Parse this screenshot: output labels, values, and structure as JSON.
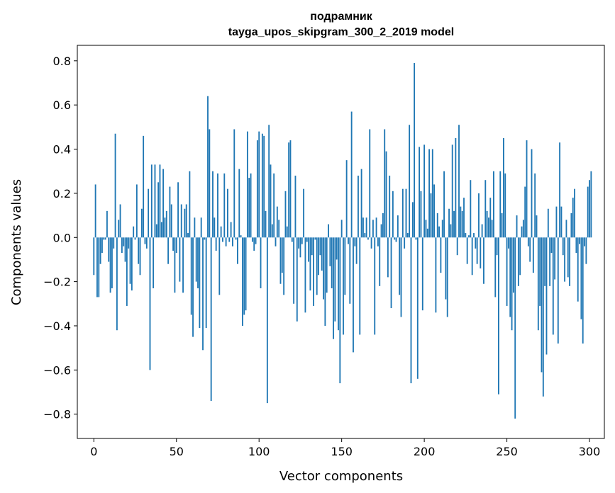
{
  "chart_data": {
    "type": "bar",
    "title": "подрамник",
    "subtitle": "tayga_upos_skipgram_300_2_2019 model",
    "xlabel": "Vector components",
    "ylabel": "Components values",
    "xlim": [
      -10,
      309
    ],
    "ylim": [
      -0.91,
      0.87
    ],
    "xticks": [
      0,
      50,
      100,
      150,
      200,
      250,
      300
    ],
    "yticks": [
      -0.8,
      -0.6,
      -0.4,
      -0.2,
      0.0,
      0.2,
      0.4,
      0.6,
      0.8
    ],
    "ytick_labels": [
      "−0.8",
      "−0.6",
      "−0.4",
      "−0.2",
      "0.0",
      "0.2",
      "0.4",
      "0.6",
      "0.8"
    ],
    "bar_color": "#1f77b4",
    "grid": false,
    "values": [
      -0.17,
      0.24,
      -0.27,
      -0.27,
      -0.12,
      -0.07,
      -0.01,
      -0.01,
      0.12,
      -0.11,
      -0.25,
      -0.23,
      -0.05,
      0.47,
      -0.42,
      0.08,
      0.15,
      -0.07,
      -0.04,
      -0.11,
      -0.31,
      -0.05,
      -0.21,
      -0.24,
      0.05,
      -0.01,
      0.24,
      -0.12,
      -0.17,
      0.13,
      0.46,
      -0.03,
      -0.05,
      0.22,
      -0.6,
      0.33,
      -0.23,
      0.33,
      0.06,
      0.25,
      0.33,
      0.07,
      0.31,
      0.09,
      0.12,
      -0.12,
      0.23,
      0.15,
      -0.06,
      -0.25,
      -0.07,
      0.25,
      -0.2,
      0.15,
      -0.25,
      0.13,
      0.15,
      0.02,
      0.3,
      -0.35,
      -0.45,
      0.09,
      -0.2,
      -0.23,
      -0.41,
      0.09,
      -0.51,
      -0.01,
      -0.41,
      0.64,
      0.49,
      -0.74,
      0.3,
      0.09,
      -0.06,
      0.29,
      -0.26,
      0.05,
      -0.02,
      0.29,
      -0.04,
      0.22,
      -0.02,
      0.07,
      -0.04,
      0.49,
      -0.01,
      -0.12,
      0.31,
      0.01,
      -0.4,
      -0.35,
      -0.33,
      0.48,
      0.27,
      0.29,
      -0.02,
      -0.06,
      -0.03,
      0.44,
      0.48,
      -0.23,
      0.47,
      0.46,
      0.12,
      -0.75,
      0.51,
      0.33,
      0.06,
      0.29,
      -0.04,
      0.14,
      0.08,
      -0.21,
      -0.16,
      -0.26,
      0.21,
      0.05,
      0.43,
      0.44,
      -0.02,
      -0.3,
      0.28,
      -0.38,
      -0.05,
      -0.09,
      -0.03,
      0.22,
      -0.34,
      -0.02,
      -0.11,
      -0.24,
      -0.08,
      -0.31,
      -0.01,
      -0.26,
      -0.17,
      -0.08,
      -0.15,
      -0.28,
      -0.4,
      -0.25,
      0.06,
      -0.13,
      -0.23,
      -0.46,
      -0.38,
      -0.1,
      -0.42,
      -0.66,
      0.08,
      -0.44,
      -0.26,
      0.35,
      -0.03,
      -0.3,
      0.57,
      -0.52,
      -0.04,
      -0.12,
      0.28,
      -0.44,
      0.31,
      0.09,
      0.02,
      0.09,
      -0.01,
      0.49,
      -0.05,
      0.08,
      -0.44,
      0.09,
      -0.04,
      -0.22,
      0.06,
      0.11,
      0.49,
      0.39,
      -0.18,
      0.28,
      -0.32,
      0.21,
      -0.01,
      -0.02,
      0.1,
      -0.26,
      -0.36,
      0.22,
      -0.05,
      0.22,
      0.02,
      0.51,
      -0.66,
      0.16,
      0.79,
      -0.01,
      -0.64,
      0.41,
      0.21,
      -0.33,
      0.42,
      0.08,
      0.04,
      0.4,
      0.2,
      0.4,
      0.24,
      -0.34,
      0.11,
      0.05,
      -0.16,
      0.08,
      0.3,
      -0.28,
      -0.36,
      0.13,
      0.06,
      0.42,
      0.12,
      0.45,
      -0.08,
      0.51,
      0.14,
      0.12,
      0.18,
      0.02,
      -0.12,
      0.01,
      0.26,
      -0.17,
      0.02,
      -0.05,
      -0.12,
      0.2,
      -0.14,
      0.06,
      -0.21,
      0.26,
      0.12,
      0.09,
      0.18,
      0.08,
      0.3,
      -0.27,
      -0.08,
      -0.71,
      0.3,
      0.11,
      0.45,
      0.29,
      -0.31,
      -0.05,
      -0.36,
      -0.42,
      -0.25,
      -0.82,
      0.1,
      -0.22,
      -0.17,
      0.05,
      0.08,
      0.23,
      0.44,
      -0.04,
      -0.11,
      0.4,
      -0.16,
      0.29,
      0.1,
      -0.42,
      -0.31,
      -0.61,
      -0.72,
      -0.22,
      -0.53,
      0.13,
      -0.22,
      -0.07,
      -0.44,
      -0.19,
      0.14,
      -0.48,
      0.43,
      0.14,
      -0.08,
      -0.2,
      0.08,
      -0.18,
      -0.22,
      0.11,
      0.18,
      0.22,
      -0.07,
      -0.29,
      -0.03,
      -0.37,
      -0.48,
      -0.04,
      -0.12,
      0.23,
      0.26,
      0.3
    ]
  }
}
